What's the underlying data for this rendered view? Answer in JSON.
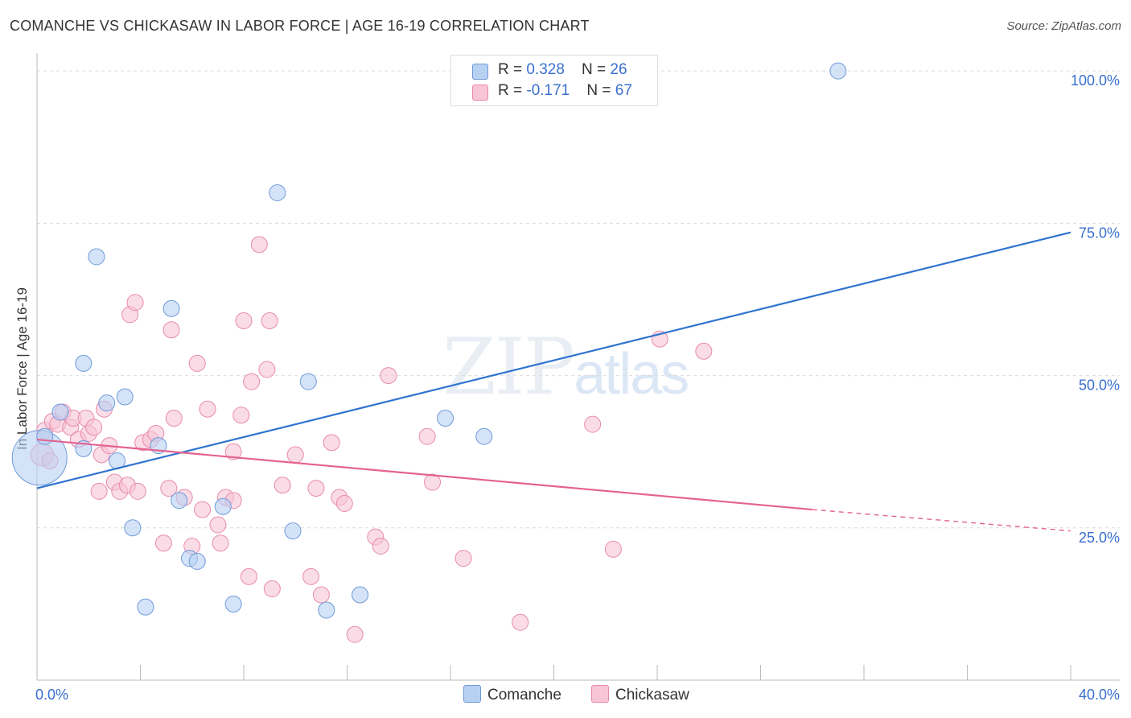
{
  "header": {
    "title": "COMANCHE VS CHICKASAW IN LABOR FORCE | AGE 16-19 CORRELATION CHART",
    "source": "Source: ZipAtlas.com"
  },
  "watermark": {
    "zip": "ZIP",
    "atlas": "atlas"
  },
  "legend": {
    "rows": [
      {
        "r_label": "R = ",
        "r_value": "0.328",
        "n_label": "N = ",
        "n_value": "26"
      },
      {
        "r_label": "R = ",
        "r_value": "-0.171",
        "n_label": "N = ",
        "n_value": "67"
      }
    ]
  },
  "bottom_legend": {
    "comanche": "Comanche",
    "chickasaw": "Chickasaw"
  },
  "colors": {
    "comanche_fill": "#b7d1f3",
    "comanche_stroke": "#6f9ad8",
    "comanche_line": "#2f73d0",
    "chickasaw_fill": "#f7c5d5",
    "chickasaw_stroke": "#e88aab",
    "chickasaw_line": "#e4628f",
    "tick_label": "#3a6fd0"
  },
  "chart_data": {
    "type": "scatter",
    "title": "COMANCHE VS CHICKASAW IN LABOR FORCE | AGE 16-19 CORRELATION CHART",
    "xlabel": "",
    "ylabel": "In Labor Force | Age 16-19",
    "xlim": [
      0,
      40
    ],
    "ylim": [
      0,
      102
    ],
    "x_tick_labels": [
      "0.0%",
      "40.0%"
    ],
    "y_ticks": [
      25,
      50,
      75,
      100
    ],
    "y_tick_labels": [
      "25.0%",
      "50.0%",
      "75.0%",
      "100.0%"
    ],
    "grid": true,
    "legend_position": "top-center",
    "series": [
      {
        "name": "Comanche",
        "r": 0.328,
        "n": 26,
        "points": [
          [
            0.1,
            36.5
          ],
          [
            0.3,
            40
          ],
          [
            0.9,
            44
          ],
          [
            1.8,
            52
          ],
          [
            1.8,
            38
          ],
          [
            2.3,
            69.5
          ],
          [
            2.7,
            45.5
          ],
          [
            3.1,
            36
          ],
          [
            3.4,
            46.5
          ],
          [
            3.7,
            25
          ],
          [
            4.2,
            12
          ],
          [
            4.7,
            38.5
          ],
          [
            5.2,
            61
          ],
          [
            5.5,
            29.5
          ],
          [
            5.9,
            20
          ],
          [
            6.2,
            19.5
          ],
          [
            7.2,
            28.5
          ],
          [
            7.6,
            12.5
          ],
          [
            9.3,
            80
          ],
          [
            9.9,
            24.5
          ],
          [
            10.5,
            49
          ],
          [
            11.2,
            11.5
          ],
          [
            12.5,
            14
          ],
          [
            15.8,
            43
          ],
          [
            17.3,
            40
          ],
          [
            31,
            100
          ]
        ],
        "sizes": [
          34,
          10,
          10,
          10,
          10,
          10,
          10,
          10,
          10,
          10,
          10,
          10,
          10,
          10,
          10,
          10,
          10,
          10,
          10,
          10,
          10,
          10,
          10,
          10,
          10,
          10
        ],
        "trend": {
          "x": [
            0,
            40
          ],
          "y": [
            31.5,
            73.5
          ]
        }
      },
      {
        "name": "Chickasaw",
        "r": -0.171,
        "n": 67,
        "points": [
          [
            0.2,
            37
          ],
          [
            0.3,
            41
          ],
          [
            0.6,
            42.5
          ],
          [
            0.8,
            42
          ],
          [
            1,
            44
          ],
          [
            1.3,
            41.5
          ],
          [
            1.4,
            43
          ],
          [
            1.6,
            39.5
          ],
          [
            1.9,
            43
          ],
          [
            2,
            40.5
          ],
          [
            2.2,
            41.5
          ],
          [
            2.4,
            31
          ],
          [
            2.5,
            37
          ],
          [
            2.6,
            44.5
          ],
          [
            2.8,
            38.5
          ],
          [
            3.0,
            32.5
          ],
          [
            3.2,
            31
          ],
          [
            3.5,
            32
          ],
          [
            3.6,
            60
          ],
          [
            3.8,
            62
          ],
          [
            3.9,
            31
          ],
          [
            4.1,
            39
          ],
          [
            4.4,
            39.5
          ],
          [
            4.6,
            40.5
          ],
          [
            4.9,
            22.5
          ],
          [
            5.1,
            31.5
          ],
          [
            5.2,
            57.5
          ],
          [
            5.3,
            43
          ],
          [
            5.7,
            30
          ],
          [
            6.0,
            22
          ],
          [
            6.2,
            52
          ],
          [
            6.4,
            28
          ],
          [
            6.6,
            44.5
          ],
          [
            7.0,
            25.5
          ],
          [
            7.1,
            22.5
          ],
          [
            7.3,
            30
          ],
          [
            7.6,
            29.5
          ],
          [
            7.6,
            37.5
          ],
          [
            7.9,
            43.5
          ],
          [
            8.0,
            59
          ],
          [
            8.2,
            17
          ],
          [
            8.3,
            49
          ],
          [
            8.6,
            71.5
          ],
          [
            8.9,
            51
          ],
          [
            9.0,
            59
          ],
          [
            9.1,
            15
          ],
          [
            9.5,
            32
          ],
          [
            10.0,
            37
          ],
          [
            10.6,
            17
          ],
          [
            10.8,
            31.5
          ],
          [
            11.0,
            14
          ],
          [
            11.4,
            39
          ],
          [
            11.7,
            30
          ],
          [
            11.9,
            29
          ],
          [
            12.3,
            7.5
          ],
          [
            13.1,
            23.5
          ],
          [
            13.3,
            22
          ],
          [
            13.6,
            50
          ],
          [
            15.1,
            40
          ],
          [
            15.3,
            32.5
          ],
          [
            16.5,
            20
          ],
          [
            18.7,
            9.5
          ],
          [
            21.5,
            42
          ],
          [
            22.3,
            21.5
          ],
          [
            24.1,
            56
          ],
          [
            25.8,
            54
          ],
          [
            0.5,
            36
          ]
        ],
        "sizes": [
          14,
          10,
          10,
          10,
          10,
          10,
          10,
          10,
          10,
          10,
          10,
          10,
          10,
          10,
          10,
          10,
          10,
          10,
          10,
          10,
          10,
          10,
          10,
          10,
          10,
          10,
          10,
          10,
          10,
          10,
          10,
          10,
          10,
          10,
          10,
          10,
          10,
          10,
          10,
          10,
          10,
          10,
          10,
          10,
          10,
          10,
          10,
          10,
          10,
          10,
          10,
          10,
          10,
          10,
          10,
          10,
          10,
          10,
          10,
          10,
          10,
          10,
          10,
          10,
          10,
          10,
          10
        ],
        "trend": {
          "x": [
            0,
            30
          ],
          "y": [
            39.5,
            28
          ],
          "dashed_to": [
            40,
            24.5
          ]
        }
      }
    ]
  }
}
